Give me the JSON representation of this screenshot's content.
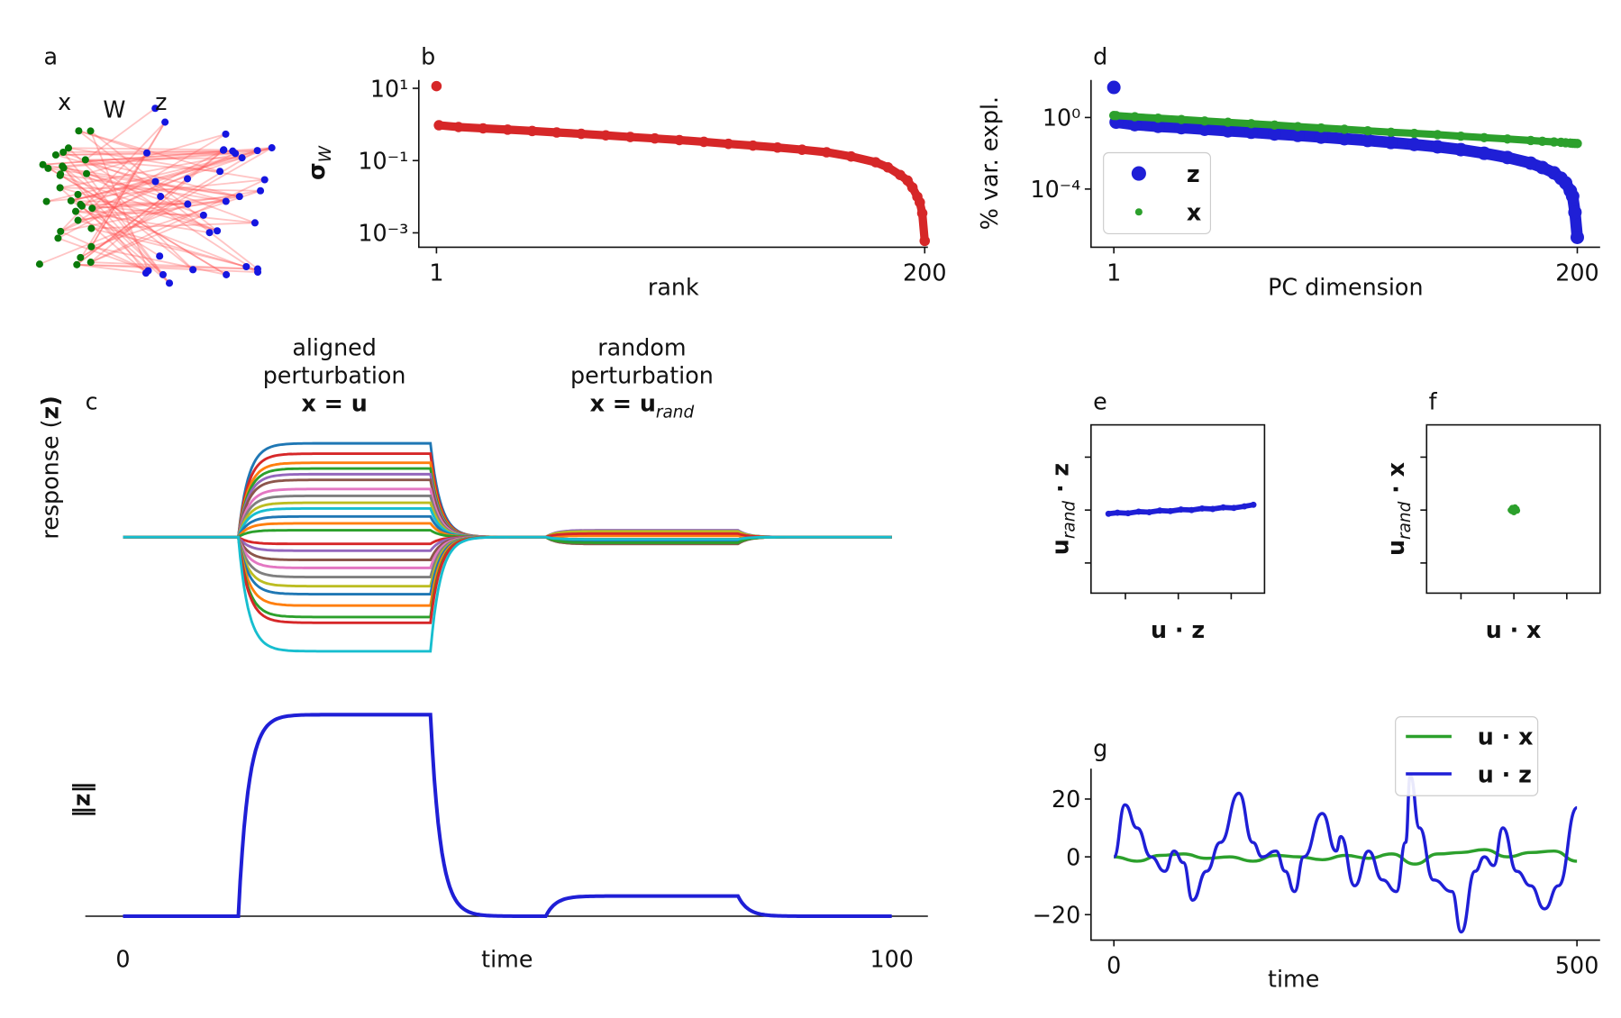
{
  "chart_data": [
    {
      "panel": "a",
      "type": "network",
      "node_labels": [
        "x",
        "W",
        "z"
      ]
    },
    {
      "panel": "b",
      "type": "scatter",
      "ylabel": {
        "main": "σ",
        "sub": "W"
      },
      "xlabel": "rank",
      "color": "#d62728",
      "ylog": true,
      "xlim": [
        -6.2,
        201.3
      ],
      "xticks": [
        1,
        200
      ],
      "ylim": [
        0.0004,
        17
      ],
      "yticks": [
        {
          "value": 10,
          "label": "10¹"
        },
        {
          "value": 0.1,
          "label": "10⁻¹"
        },
        {
          "value": 0.001,
          "label": "10⁻³"
        }
      ],
      "x": [
        1,
        2,
        10,
        20,
        30,
        40,
        50,
        60,
        70,
        80,
        90,
        100,
        110,
        120,
        130,
        140,
        150,
        160,
        170,
        180,
        185,
        190,
        193,
        195,
        197,
        198,
        199,
        200
      ],
      "values": [
        11.5,
        0.95,
        0.85,
        0.78,
        0.72,
        0.66,
        0.6,
        0.55,
        0.5,
        0.45,
        0.41,
        0.37,
        0.33,
        0.29,
        0.26,
        0.23,
        0.2,
        0.17,
        0.13,
        0.09,
        0.065,
        0.04,
        0.028,
        0.018,
        0.01,
        0.007,
        0.0035,
        0.0006
      ]
    },
    {
      "panel": "c",
      "type": "step-response",
      "ylabel": {
        "pre": "response (",
        "main": "z",
        "rest": ")"
      },
      "annotations": [
        {
          "text": [
            "aligned",
            "perturbation"
          ],
          "formula": {
            "main": "x = u"
          }
        },
        {
          "text": [
            "random",
            "perturbation"
          ],
          "formula": {
            "main": "x = u",
            "sub": "rand"
          }
        }
      ],
      "windows": [
        [
          15,
          40
        ],
        [
          55,
          80
        ]
      ],
      "xlim": [
        -4.9,
        104.7
      ],
      "xticks": [
        0,
        100
      ],
      "xlabel": "time",
      "series": [
        {
          "color": "#1f77b4",
          "values": [
            0.82,
            0.05
          ]
        },
        {
          "color": "#d62728",
          "values": [
            0.73,
            -0.04
          ]
        },
        {
          "color": "#ff7f0e",
          "values": [
            0.65,
            0.03
          ]
        },
        {
          "color": "#2ca02c",
          "values": [
            0.6,
            -0.02
          ]
        },
        {
          "color": "#9467bd",
          "values": [
            0.55,
            0.06
          ]
        },
        {
          "color": "#8c564b",
          "values": [
            0.5,
            -0.05
          ]
        },
        {
          "color": "#e377c2",
          "values": [
            0.42,
            0.02
          ]
        },
        {
          "color": "#7f7f7f",
          "values": [
            0.36,
            -0.06
          ]
        },
        {
          "color": "#bcbd22",
          "values": [
            0.3,
            0.04
          ]
        },
        {
          "color": "#17becf",
          "values": [
            0.25,
            -0.03
          ]
        },
        {
          "color": "#1f77b4",
          "values": [
            0.18,
            0.05
          ]
        },
        {
          "color": "#ff7f0e",
          "values": [
            0.12,
            -0.05
          ]
        },
        {
          "color": "#2ca02c",
          "values": [
            0.06,
            0.03
          ]
        },
        {
          "color": "#d62728",
          "values": [
            -0.06,
            -0.02
          ]
        },
        {
          "color": "#9467bd",
          "values": [
            -0.12,
            0.04
          ]
        },
        {
          "color": "#8c564b",
          "values": [
            -0.2,
            -0.06
          ]
        },
        {
          "color": "#e377c2",
          "values": [
            -0.27,
            0.02
          ]
        },
        {
          "color": "#7f7f7f",
          "values": [
            -0.35,
            -0.04
          ]
        },
        {
          "color": "#bcbd22",
          "values": [
            -0.43,
            0.05
          ]
        },
        {
          "color": "#1f77b4",
          "values": [
            -0.5,
            -0.03
          ]
        },
        {
          "color": "#ff7f0e",
          "values": [
            -0.6,
            0.01
          ]
        },
        {
          "color": "#2ca02c",
          "values": [
            -0.7,
            -0.05
          ]
        },
        {
          "color": "#d62728",
          "values": [
            -0.75,
            0.03
          ]
        },
        {
          "color": "#17becf",
          "values": [
            -1.0,
            -0.02
          ]
        }
      ],
      "norm": {
        "ylabel": "‖z‖",
        "color": "#1f1fd6",
        "ylim": [
          0,
          1
        ],
        "values": [
          1,
          0.1
        ]
      }
    },
    {
      "panel": "d",
      "type": "scatter",
      "ylabel": "% var. expl.",
      "xlabel": "PC dimension",
      "ylog": true,
      "legend": "lower left",
      "xlim": [
        -8.8,
        209.8
      ],
      "xticks": [
        1,
        200
      ],
      "ylim": [
        5.6e-08,
        125
      ],
      "yticks": [
        {
          "value": 1,
          "label": "10⁰"
        },
        {
          "value": 0.0001,
          "label": "10⁻⁴"
        }
      ],
      "x": [
        1,
        2,
        10,
        20,
        30,
        40,
        50,
        60,
        70,
        80,
        90,
        100,
        110,
        120,
        130,
        140,
        150,
        160,
        170,
        180,
        185,
        190,
        193,
        195,
        197,
        198,
        199,
        200
      ],
      "series": [
        {
          "name": "z",
          "color": "#1f1fd6",
          "values": [
            48,
            0.55,
            0.4,
            0.32,
            0.27,
            0.22,
            0.18,
            0.15,
            0.12,
            0.1,
            0.08,
            0.065,
            0.052,
            0.04,
            0.031,
            0.023,
            0.016,
            0.01,
            0.0058,
            0.0028,
            0.0016,
            0.0008,
            0.0004,
            0.00022,
            8e-05,
            4e-05,
            5e-06,
            2e-07
          ]
        },
        {
          "name": "x",
          "color": "#2ca02c",
          "values": [
            1.3,
            1.28,
            1.1,
            0.92,
            0.77,
            0.64,
            0.54,
            0.45,
            0.38,
            0.31,
            0.26,
            0.22,
            0.18,
            0.15,
            0.13,
            0.11,
            0.09,
            0.075,
            0.063,
            0.052,
            0.047,
            0.043,
            0.041,
            0.039,
            0.037,
            0.036,
            0.0355,
            0.035
          ]
        }
      ]
    },
    {
      "panel": "e",
      "type": "scatter",
      "xlabel": {
        "main": "u · z"
      },
      "ylabel": {
        "main": "u",
        "sub": "rand",
        "rest": " · z"
      },
      "color": "#1f1fd6",
      "xlim": [
        -1.65,
        1.63
      ],
      "ylim": [
        -1.57,
        1.61
      ],
      "xticks": [
        -1,
        0,
        1
      ],
      "yticks": [
        -1,
        0,
        1
      ],
      "x": [
        -1.32,
        -1.15,
        -0.95,
        -0.75,
        -0.55,
        -0.35,
        -0.15,
        0.05,
        0.25,
        0.45,
        0.65,
        0.85,
        1.05,
        1.25,
        1.42
      ],
      "values": [
        -0.07,
        -0.05,
        -0.06,
        -0.03,
        -0.04,
        -0.01,
        -0.02,
        0.01,
        0.0,
        0.03,
        0.02,
        0.05,
        0.04,
        0.07,
        0.1
      ]
    },
    {
      "panel": "f",
      "type": "scatter",
      "xlabel": {
        "main": "u · x"
      },
      "ylabel": {
        "main": "u",
        "sub": "rand",
        "rest": " · x"
      },
      "color": "#2ca02c",
      "xlim": [
        -1.65,
        1.63
      ],
      "ylim": [
        -1.57,
        1.61
      ],
      "xticks": [
        -1,
        0,
        1
      ],
      "yticks": [
        -1,
        0,
        1
      ],
      "x": [
        -0.06,
        -0.03,
        0.0,
        0.03,
        0.06,
        -0.04,
        0.02,
        0.05,
        -0.01
      ],
      "values": [
        0.0,
        0.04,
        -0.04,
        0.03,
        -0.01,
        -0.02,
        0.05,
        0.02,
        0.01
      ]
    },
    {
      "panel": "g",
      "type": "line",
      "xlabel": "time",
      "legend": "upper right",
      "xlim": [
        -24.7,
        525
      ],
      "ylim": [
        -28.8,
        30.5
      ],
      "xticks": [
        0,
        500
      ],
      "yticks": [
        {
          "value": 20,
          "label": "20"
        },
        0,
        {
          "value": -20,
          "label": "−20"
        }
      ],
      "series": [
        {
          "name": "u · x",
          "color": "#2ca02c",
          "x": [
            0,
            25,
            50,
            75,
            100,
            125,
            150,
            175,
            200,
            225,
            250,
            275,
            300,
            325,
            350,
            375,
            400,
            425,
            450,
            475,
            500
          ],
          "values": [
            0,
            -1.5,
            0.5,
            1,
            -0.5,
            0,
            -1.5,
            0.5,
            0,
            -1,
            0.5,
            -0.5,
            1,
            -2.5,
            1,
            1.5,
            2.5,
            0,
            1.5,
            2,
            -1.5
          ]
        },
        {
          "name": "u · z",
          "color": "#1f1fd6",
          "x": [
            0,
            12,
            25,
            40,
            55,
            65,
            75,
            85,
            100,
            115,
            135,
            150,
            160,
            175,
            185,
            195,
            205,
            225,
            240,
            245,
            260,
            275,
            290,
            305,
            315,
            320,
            330,
            345,
            365,
            375,
            390,
            400,
            410,
            420,
            435,
            450,
            465,
            480,
            500
          ],
          "values": [
            0,
            18,
            10,
            0,
            -5,
            2,
            -2,
            -15,
            -5,
            5,
            22,
            5,
            0,
            2,
            -5,
            -12,
            0,
            15,
            2,
            7,
            -10,
            2,
            -8,
            -12,
            5,
            28,
            10,
            -8,
            -12,
            -26,
            -5,
            0,
            -3,
            10,
            -5,
            -10,
            -18,
            -10,
            17
          ]
        }
      ]
    }
  ]
}
